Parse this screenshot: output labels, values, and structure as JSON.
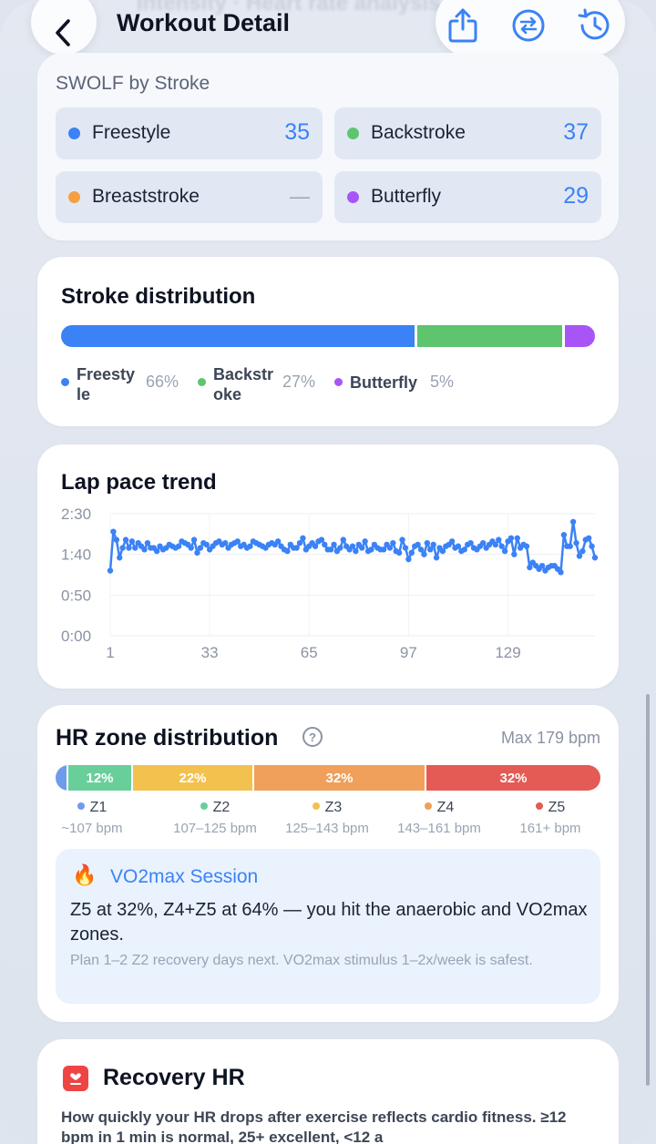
{
  "header": {
    "title": "Workout Detail",
    "ghost_title": "Intensity · Heart rate analysis"
  },
  "swolf": {
    "label": "SWOLF by Stroke",
    "items": [
      {
        "name": "Freestyle",
        "value": "35",
        "color": "#3b82f6"
      },
      {
        "name": "Backstroke",
        "value": "37",
        "color": "#5ec46e"
      },
      {
        "name": "Breaststroke",
        "value": "—",
        "color": "#f59e42"
      },
      {
        "name": "Butterfly",
        "value": "29",
        "color": "#a855f7"
      }
    ]
  },
  "stroke_distribution": {
    "title": "Stroke distribution",
    "segments": [
      {
        "name": "Freestyle",
        "name_line1": "Freesty",
        "name_line2": "le",
        "percent": 66,
        "percent_label": "66%",
        "color": "#3b82f6"
      },
      {
        "name": "Backstroke",
        "name_line1": "Backstr",
        "name_line2": "oke",
        "percent": 27,
        "percent_label": "27%",
        "color": "#5ec46e"
      },
      {
        "name": "Butterfly",
        "name_line1": "Butterfly",
        "name_line2": "",
        "percent": 5,
        "percent_label": "5%",
        "color": "#a855f7"
      }
    ]
  },
  "lap_pace": {
    "title": "Lap pace trend"
  },
  "chart_data": {
    "type": "line",
    "xlabel": "",
    "ylabel": "",
    "x_ticks": [
      "1",
      "33",
      "65",
      "97",
      "129"
    ],
    "y_ticks": [
      "0:00",
      "0:50",
      "1:40",
      "2:30"
    ],
    "ylim": [
      0,
      150
    ],
    "xlim": [
      1,
      157
    ],
    "color": "#3b82f6",
    "series": [
      {
        "values": [
          80,
          128,
          118,
          96,
          108,
          118,
          108,
          116,
          108,
          114,
          110,
          106,
          114,
          108,
          108,
          104,
          110,
          106,
          108,
          112,
          110,
          108,
          110,
          116,
          114,
          112,
          108,
          118,
          102,
          108,
          114,
          112,
          106,
          110,
          114,
          116,
          112,
          114,
          108,
          112,
          114,
          116,
          110,
          112,
          108,
          110,
          116,
          114,
          112,
          110,
          108,
          112,
          114,
          112,
          116,
          110,
          106,
          104,
          112,
          108,
          108,
          114,
          120,
          106,
          110,
          114,
          110,
          116,
          118,
          112,
          106,
          106,
          112,
          104,
          108,
          118,
          110,
          106,
          110,
          104,
          112,
          108,
          116,
          104,
          106,
          112,
          108,
          106,
          106,
          112,
          108,
          114,
          104,
          102,
          118,
          108,
          94,
          102,
          110,
          112,
          106,
          100,
          114,
          106,
          112,
          96,
          108,
          104,
          110,
          112,
          116,
          108,
          110,
          104,
          106,
          112,
          114,
          108,
          106,
          110,
          114,
          108,
          112,
          116,
          112,
          118,
          110,
          104,
          116,
          120,
          100,
          120,
          108,
          112,
          110,
          84,
          90,
          86,
          82,
          86,
          80,
          84,
          86,
          86,
          82,
          78,
          124,
          110,
          110,
          140,
          114,
          98,
          104,
          118,
          120,
          110,
          96
        ]
      }
    ]
  },
  "hr_zone": {
    "title": "HR zone distribution",
    "help_icon": "?",
    "max_label": "Max 179 bpm",
    "segments": [
      {
        "name": "Z1",
        "percent": 2,
        "label": "",
        "range": "~107 bpm",
        "color": "#6f9cea"
      },
      {
        "name": "Z2",
        "percent": 12,
        "label": "12%",
        "range": "107–125 bpm",
        "color": "#68cf9b"
      },
      {
        "name": "Z3",
        "percent": 22,
        "label": "22%",
        "range": "125–143 bpm",
        "color": "#f2c14e"
      },
      {
        "name": "Z4",
        "percent": 32,
        "label": "32%",
        "range": "143–161 bpm",
        "color": "#f0a05a"
      },
      {
        "name": "Z5",
        "percent": 32,
        "label": "32%",
        "range": "161+ bpm",
        "color": "#e45a55"
      }
    ],
    "insight": {
      "icon": "🔥",
      "title": "VO2max Session",
      "main": "Z5 at 32%, Z4+Z5 at 64% — you hit the anaerobic and VO2max zones.",
      "sub": "Plan 1–2 Z2 recovery days next. VO2max stimulus 1–2x/week is safest."
    }
  },
  "recovery": {
    "title": "Recovery HR",
    "text": "How quickly your HR drops after exercise reflects cardio fitness. ≥12 bpm in 1 min is normal, 25+ excellent, <12 a"
  }
}
